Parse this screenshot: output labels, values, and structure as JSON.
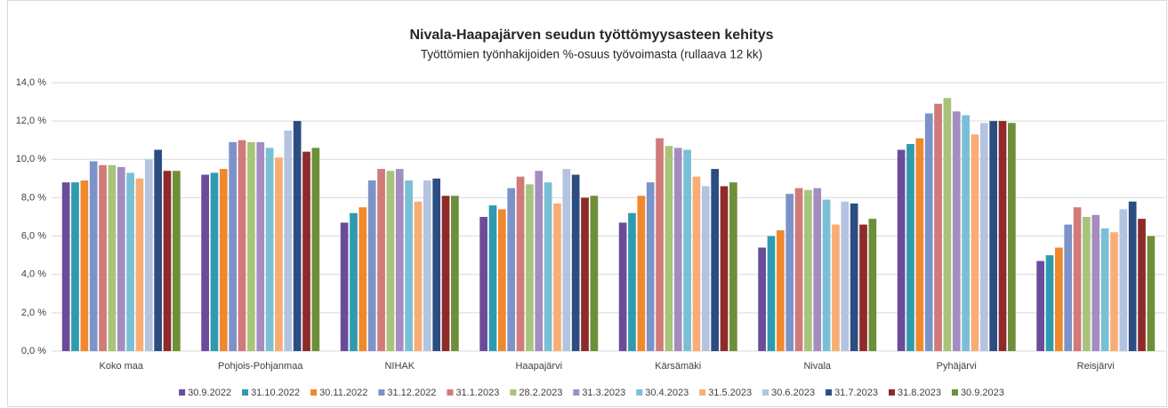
{
  "chart_data": {
    "type": "bar",
    "title": "Nivala-Haapajärven seudun työttömyysasteen kehitys",
    "subtitle": "Työttömien työnhakijoiden %-osuus työvoimasta (rullaava 12 kk)",
    "categories": [
      "Koko maa",
      "Pohjois-Pohjanmaa",
      "NIHAK",
      "Haapajärvi",
      "Kärsämäki",
      "Nivala",
      "Pyhäjärvi",
      "Reisjärvi"
    ],
    "ylim": [
      0,
      14
    ],
    "yticks": [
      {
        "value": 0,
        "label": "0,0 %"
      },
      {
        "value": 2,
        "label": "2,0 %"
      },
      {
        "value": 4,
        "label": "4,0 %"
      },
      {
        "value": 6,
        "label": "6,0 %"
      },
      {
        "value": 8,
        "label": "8,0 %"
      },
      {
        "value": 10,
        "label": "10,0 %"
      },
      {
        "value": 12,
        "label": "12,0 %"
      },
      {
        "value": 14,
        "label": "14,0 %"
      }
    ],
    "grid": true,
    "legend": "bottom",
    "series": [
      {
        "name": "30.9.2022",
        "color": "#6b4c9a",
        "values": [
          8.8,
          9.2,
          6.7,
          7.0,
          6.7,
          5.4,
          10.5,
          4.7
        ]
      },
      {
        "name": "31.10.2022",
        "color": "#2e9bb0",
        "values": [
          8.8,
          9.3,
          7.2,
          7.6,
          7.2,
          6.0,
          10.8,
          5.0
        ]
      },
      {
        "name": "30.11.2022",
        "color": "#f0882c",
        "values": [
          8.9,
          9.5,
          7.5,
          7.4,
          8.1,
          6.3,
          11.1,
          5.4
        ]
      },
      {
        "name": "31.12.2022",
        "color": "#7b93c9",
        "values": [
          9.9,
          10.9,
          8.9,
          8.5,
          8.8,
          8.2,
          12.4,
          6.6
        ]
      },
      {
        "name": "31.1.2023",
        "color": "#d07a7a",
        "values": [
          9.7,
          11.0,
          9.5,
          9.1,
          11.1,
          8.5,
          12.9,
          7.5
        ]
      },
      {
        "name": "28.2.2023",
        "color": "#a8c47a",
        "values": [
          9.7,
          10.9,
          9.4,
          8.7,
          10.7,
          8.4,
          13.2,
          7.0
        ]
      },
      {
        "name": "31.3.2023",
        "color": "#a48cc0",
        "values": [
          9.6,
          10.9,
          9.5,
          9.4,
          10.6,
          8.5,
          12.5,
          7.1
        ]
      },
      {
        "name": "30.4.2023",
        "color": "#79c0d6",
        "values": [
          9.3,
          10.6,
          8.9,
          8.8,
          10.5,
          7.9,
          12.3,
          6.4
        ]
      },
      {
        "name": "31.5.2023",
        "color": "#f9ad74",
        "values": [
          9.0,
          10.1,
          7.8,
          7.7,
          9.1,
          6.6,
          11.3,
          6.2
        ]
      },
      {
        "name": "30.6.2023",
        "color": "#b3c3e0",
        "values": [
          10.0,
          11.5,
          8.9,
          9.5,
          8.6,
          7.8,
          11.9,
          7.4
        ]
      },
      {
        "name": "31.7.2023",
        "color": "#2c4d82",
        "values": [
          10.5,
          12.0,
          9.0,
          9.2,
          9.5,
          7.7,
          12.0,
          7.8
        ]
      },
      {
        "name": "31.8.2023",
        "color": "#8e2a2a",
        "values": [
          9.4,
          10.4,
          8.1,
          8.0,
          8.6,
          6.6,
          12.0,
          6.9
        ]
      },
      {
        "name": "30.9.2023",
        "color": "#6e8f3a",
        "values": [
          9.4,
          10.6,
          8.1,
          8.1,
          8.8,
          6.9,
          11.9,
          6.0
        ]
      }
    ]
  }
}
